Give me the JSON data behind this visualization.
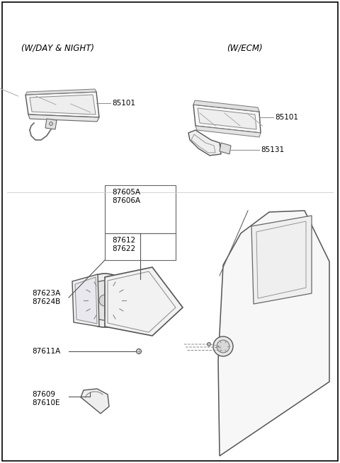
{
  "bg_color": "#ffffff",
  "border_color": "#000000",
  "line_color": "#555555",
  "text_color": "#000000",
  "labels": {
    "top_left_header": "(W/DAY & NIGHT)",
    "top_right_header": "(W/ECM)",
    "part_85101_left": "85101",
    "part_85101_right": "85101",
    "part_85131": "85131",
    "part_87605A": "87605A",
    "part_87606A": "87606A",
    "part_87612": "87612",
    "part_87622": "87622",
    "part_87623A": "87623A",
    "part_87624B": "87624B",
    "part_87611A": "87611A",
    "part_87609": "87609",
    "part_87610E": "87610E"
  },
  "font_size_header": 8.5,
  "font_size_label": 7.5
}
